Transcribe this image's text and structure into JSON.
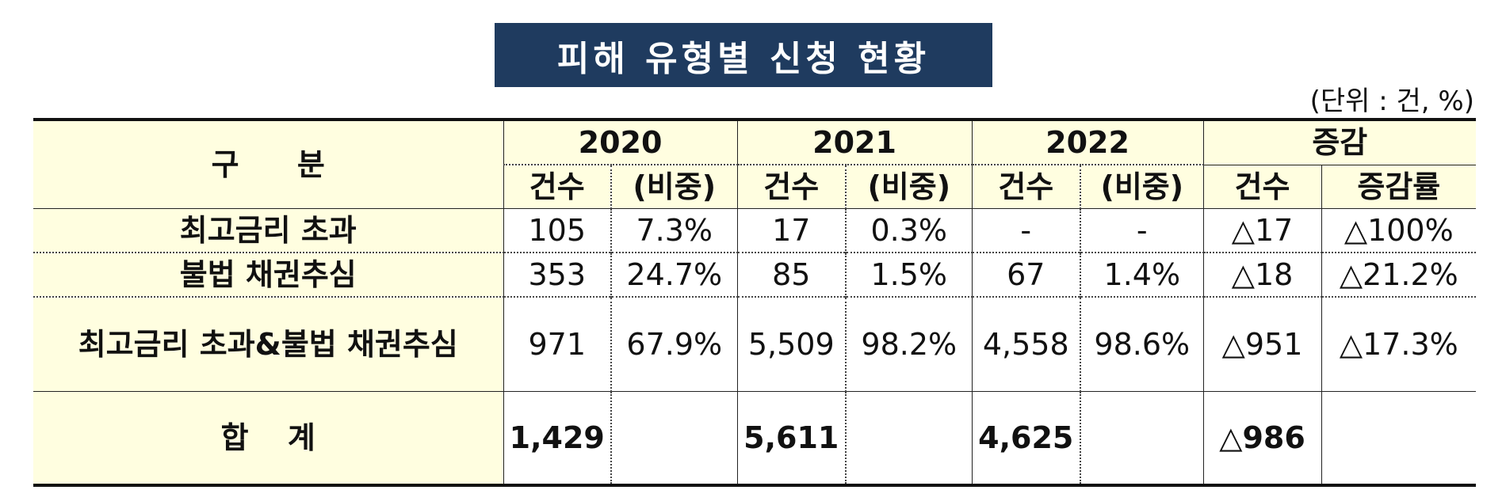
{
  "title": "피해 유형별 신청 현황",
  "unit": "(단위 : 건, %)",
  "header": {
    "category": "구  분",
    "years": [
      "2020",
      "2021",
      "2022"
    ],
    "change": "증감",
    "count": "건수",
    "share": "(비중)",
    "change_count": "건수",
    "change_rate": "증감률"
  },
  "rows": [
    {
      "label": "최고금리 초과",
      "c2020": "105",
      "s2020": "7.3%",
      "c2021": "17",
      "s2021": "0.3%",
      "c2022": "-",
      "s2022": "-",
      "dcount": "△17",
      "drate": "△100%"
    },
    {
      "label": "불법 채권추심",
      "c2020": "353",
      "s2020": "24.7%",
      "c2021": "85",
      "s2021": "1.5%",
      "c2022": "67",
      "s2022": "1.4%",
      "dcount": "△18",
      "drate": "△21.2%"
    },
    {
      "label": "최고금리 초과&불법 채권추심",
      "c2020": "971",
      "s2020": "67.9%",
      "c2021": "5,509",
      "s2021": "98.2%",
      "c2022": "4,558",
      "s2022": "98.6%",
      "dcount": "△951",
      "drate": "△17.3%"
    }
  ],
  "total": {
    "label": "합 계",
    "c2020": "1,429",
    "s2020": "",
    "c2021": "5,611",
    "s2021": "",
    "c2022": "4,625",
    "s2022": "",
    "dcount": "△986",
    "drate": ""
  }
}
